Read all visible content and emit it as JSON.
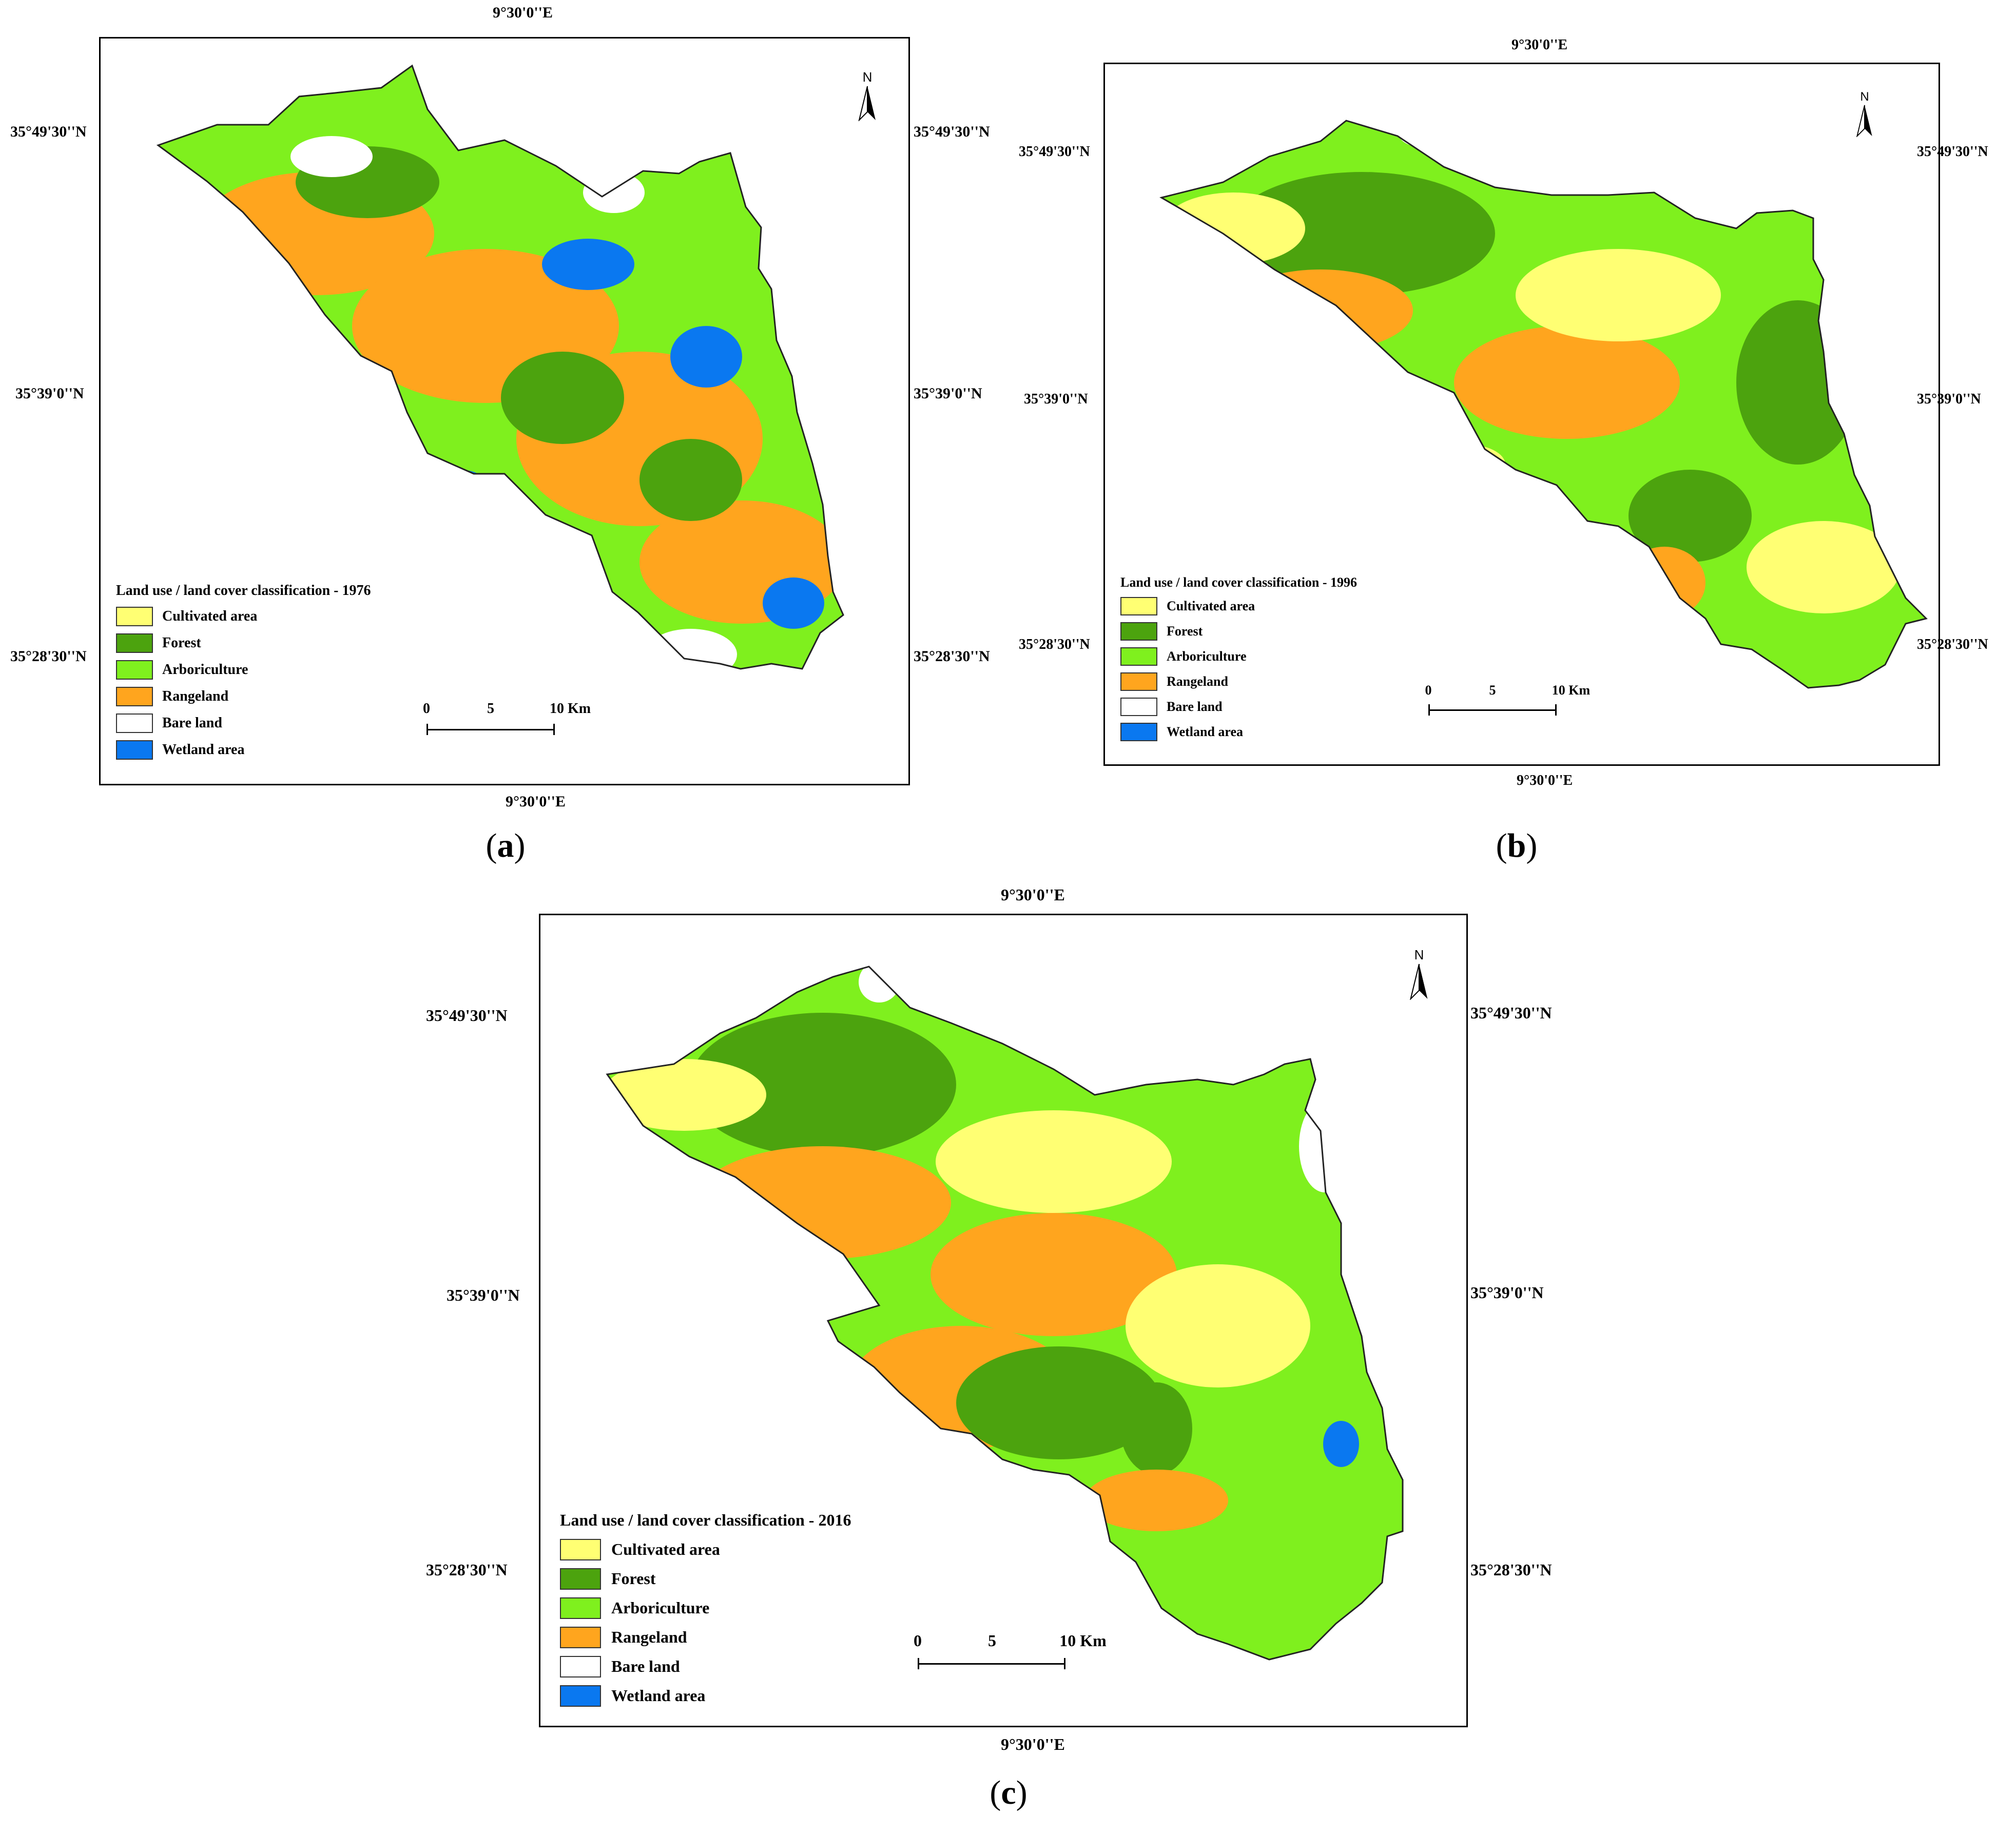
{
  "legend_classes": [
    {
      "label": "Cultivated area",
      "color": "#ffff73"
    },
    {
      "label": "Forest",
      "color": "#4ca30e"
    },
    {
      "label": "Arboriculture",
      "color": "#7ff01e"
    },
    {
      "label": "Rangeland",
      "color": "#ffa51e"
    },
    {
      "label": "Bare land",
      "color": "#ffffff"
    },
    {
      "label": "Wetland area",
      "color": "#0a78f0"
    }
  ],
  "coords": {
    "lon": "9°30'0''E",
    "lat_north": "35°49'30''N",
    "lat_mid": "35°39'0''N",
    "lat_south": "35°28'30''N"
  },
  "scale": {
    "t0": "0",
    "t5": "5",
    "t10": "10 Km"
  },
  "north_label": "N",
  "panels": [
    {
      "legend_title": "Land use / land cover classification - 1976",
      "caption_letter": "a",
      "dominant": "mixed"
    },
    {
      "legend_title": "Land use / land cover classification - 1996",
      "caption_letter": "b",
      "dominant": "green"
    },
    {
      "legend_title": "Land use / land cover classification - 2016",
      "caption_letter": "c",
      "dominant": "green"
    }
  ],
  "caption_open": "(",
  "caption_close": ")"
}
